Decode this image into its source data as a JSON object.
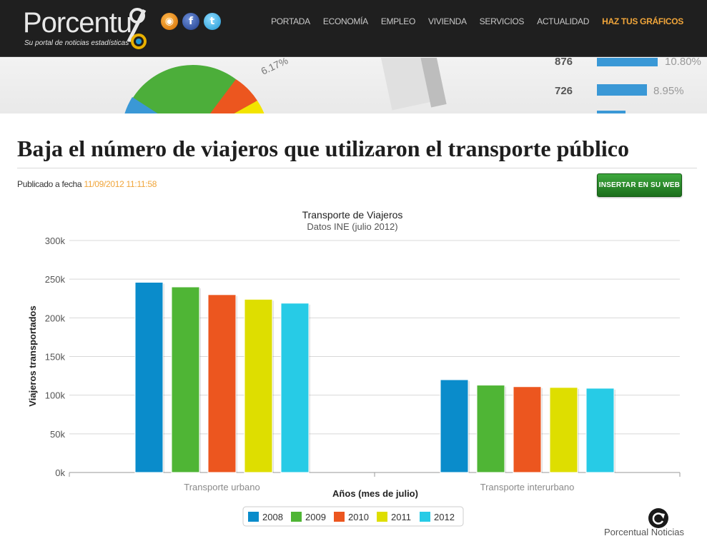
{
  "header": {
    "logo_text": "Porcentu",
    "tagline": "Su portal de noticias estadísticas",
    "nav": [
      {
        "label": "PORTADA",
        "highlight": false
      },
      {
        "label": "ECONOMÍA",
        "highlight": false
      },
      {
        "label": "EMPLEO",
        "highlight": false
      },
      {
        "label": "VIVIENDA",
        "highlight": false
      },
      {
        "label": "SERVICIOS",
        "highlight": false
      },
      {
        "label": "ACTUALIDAD",
        "highlight": false
      },
      {
        "label": "HAZ TUS GRÁFICOS",
        "highlight": true
      }
    ],
    "social_icons": [
      "rss-icon",
      "facebook-icon",
      "twitter-icon"
    ]
  },
  "banner": {
    "label_1": "6.17%",
    "rows": [
      {
        "value": "876",
        "pct": "10.80%"
      },
      {
        "value": "726",
        "pct": "8.95%"
      }
    ]
  },
  "article": {
    "title": "Baja el número de viajeros que utilizaron el transporte público",
    "published_label": "Publicado a fecha",
    "published_date": "11/09/2012 11:11:58",
    "embed_button": "INSERTAR EN SU WEB"
  },
  "chart_data": {
    "type": "bar",
    "title": "Transporte de Viajeros",
    "subtitle": "Datos INE (julio 2012)",
    "xlabel": "Años (mes de julio)",
    "ylabel": "Viajeros transportados",
    "categories": [
      "Transporte urbano",
      "Transporte interurbano"
    ],
    "series": [
      {
        "name": "2008",
        "color": "#0a8ccb",
        "values": [
          246,
          120
        ]
      },
      {
        "name": "2009",
        "color": "#4fb535",
        "values": [
          240,
          113
        ]
      },
      {
        "name": "2010",
        "color": "#ec561f",
        "values": [
          230,
          111
        ]
      },
      {
        "name": "2011",
        "color": "#dede00",
        "values": [
          224,
          110
        ]
      },
      {
        "name": "2012",
        "color": "#27cbe6",
        "values": [
          219,
          109
        ]
      }
    ],
    "ylim": [
      0,
      300
    ],
    "yticks": [
      "0k",
      "50k",
      "100k",
      "150k",
      "200k",
      "250k",
      "300k"
    ],
    "ytick_values": [
      0,
      50,
      100,
      150,
      200,
      250,
      300
    ],
    "grid": true,
    "legend_position": "bottom-center",
    "credit": "Porcentual Noticias"
  }
}
